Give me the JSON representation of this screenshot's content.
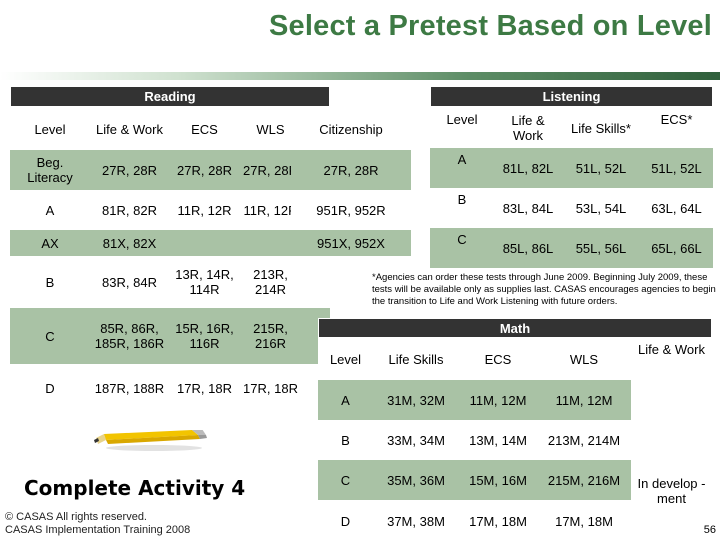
{
  "title": "Select a Pretest Based on Level",
  "reading": {
    "group_label": "Reading",
    "headers": [
      "Level",
      "Life & Work",
      "ECS",
      "WLS",
      "Citizenship"
    ],
    "rows": [
      [
        "Beg. Literacy",
        "27R, 28R",
        "27R, 28R",
        "27R, 28R",
        "27R, 28R"
      ],
      [
        "A",
        "81R, 82R",
        "11R, 12R",
        "11R, 12R",
        "951R, 952R"
      ],
      [
        "AX",
        "81X, 82X",
        "",
        "",
        "951X, 952X"
      ],
      [
        "B",
        "83R, 84R",
        "13R, 14R, 114R",
        "213R, 214R",
        ""
      ],
      [
        "C",
        "85R, 86R, 185R, 186R",
        "15R, 16R, 116R",
        "215R, 216R",
        ""
      ],
      [
        "D",
        "187R, 188R",
        "17R, 18R",
        "17R, 18R",
        ""
      ]
    ]
  },
  "listening": {
    "group_label": "Listening",
    "headers": [
      "Level",
      "Life & Work",
      "Life Skills*",
      "ECS*"
    ],
    "rows": [
      [
        "A",
        "81L, 82L",
        "51L, 52L",
        "51L, 52L"
      ],
      [
        "B",
        "83L, 84L",
        "53L, 54L",
        "63L, 64L"
      ],
      [
        "C",
        "85L, 86L",
        "55L, 56L",
        "65L, 66L"
      ]
    ],
    "footnote": "*Agencies can order these tests through June 2009. Beginning July 2009, these tests will be available only as supplies last. CASAS encourages agencies to begin the transition to Life and Work Listening with future orders."
  },
  "math": {
    "group_label": "Math",
    "headers": [
      "Level",
      "Life Skills",
      "ECS",
      "WLS",
      "Life & Work"
    ],
    "rows": [
      [
        "A",
        "31M, 32M",
        "11M, 12M",
        "11M, 12M"
      ],
      [
        "B",
        "33M, 34M",
        "13M, 14M",
        "213M, 214M"
      ],
      [
        "C",
        "35M, 36M",
        "15M, 16M",
        "215M, 216M"
      ],
      [
        "D",
        "37M, 38M",
        "17M, 18M",
        "17M, 18M"
      ]
    ],
    "life_work_note": "In develop -ment"
  },
  "activity": "Complete Activity 4",
  "copyright": [
    "© CASAS All rights reserved.",
    "CASAS Implementation Training 2008"
  ],
  "page_number": "56",
  "colors": {
    "title": "#3d7a44",
    "row_tint": "#a9c2a5",
    "header_bar": "#333333"
  }
}
